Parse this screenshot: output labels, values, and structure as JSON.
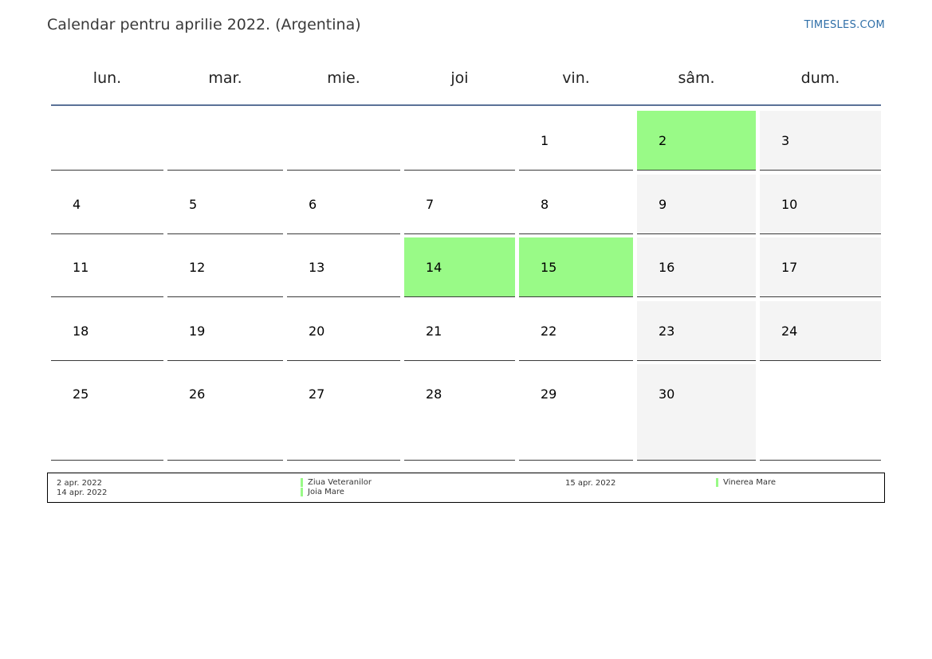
{
  "header": {
    "title": "Calendar pentru aprilie 2022. (Argentina)",
    "brand": "TIMESLES.COM"
  },
  "colors": {
    "holiday": "#99fa87",
    "weekend": "#f4f4f4",
    "header_rule": "#5a7197",
    "brand": "#2f6fa8"
  },
  "weekdays": [
    "lun.",
    "mar.",
    "mie.",
    "joi",
    "vin.",
    "sâm.",
    "dum."
  ],
  "weeks": [
    [
      "",
      "",
      "",
      "",
      "1",
      "2",
      "3"
    ],
    [
      "4",
      "5",
      "6",
      "7",
      "8",
      "9",
      "10"
    ],
    [
      "11",
      "12",
      "13",
      "14",
      "15",
      "16",
      "17"
    ],
    [
      "18",
      "19",
      "20",
      "21",
      "22",
      "23",
      "24"
    ],
    [
      "25",
      "26",
      "27",
      "28",
      "29",
      "30",
      ""
    ]
  ],
  "holiday_days": [
    "2",
    "14",
    "15"
  ],
  "legend": {
    "entries": [
      {
        "date": "2 apr. 2022",
        "name": "Ziua Veteranilor"
      },
      {
        "date": "14 apr. 2022",
        "name": "Joia Mare"
      },
      {
        "date": "15 apr. 2022",
        "name": "Vinerea Mare"
      }
    ]
  }
}
